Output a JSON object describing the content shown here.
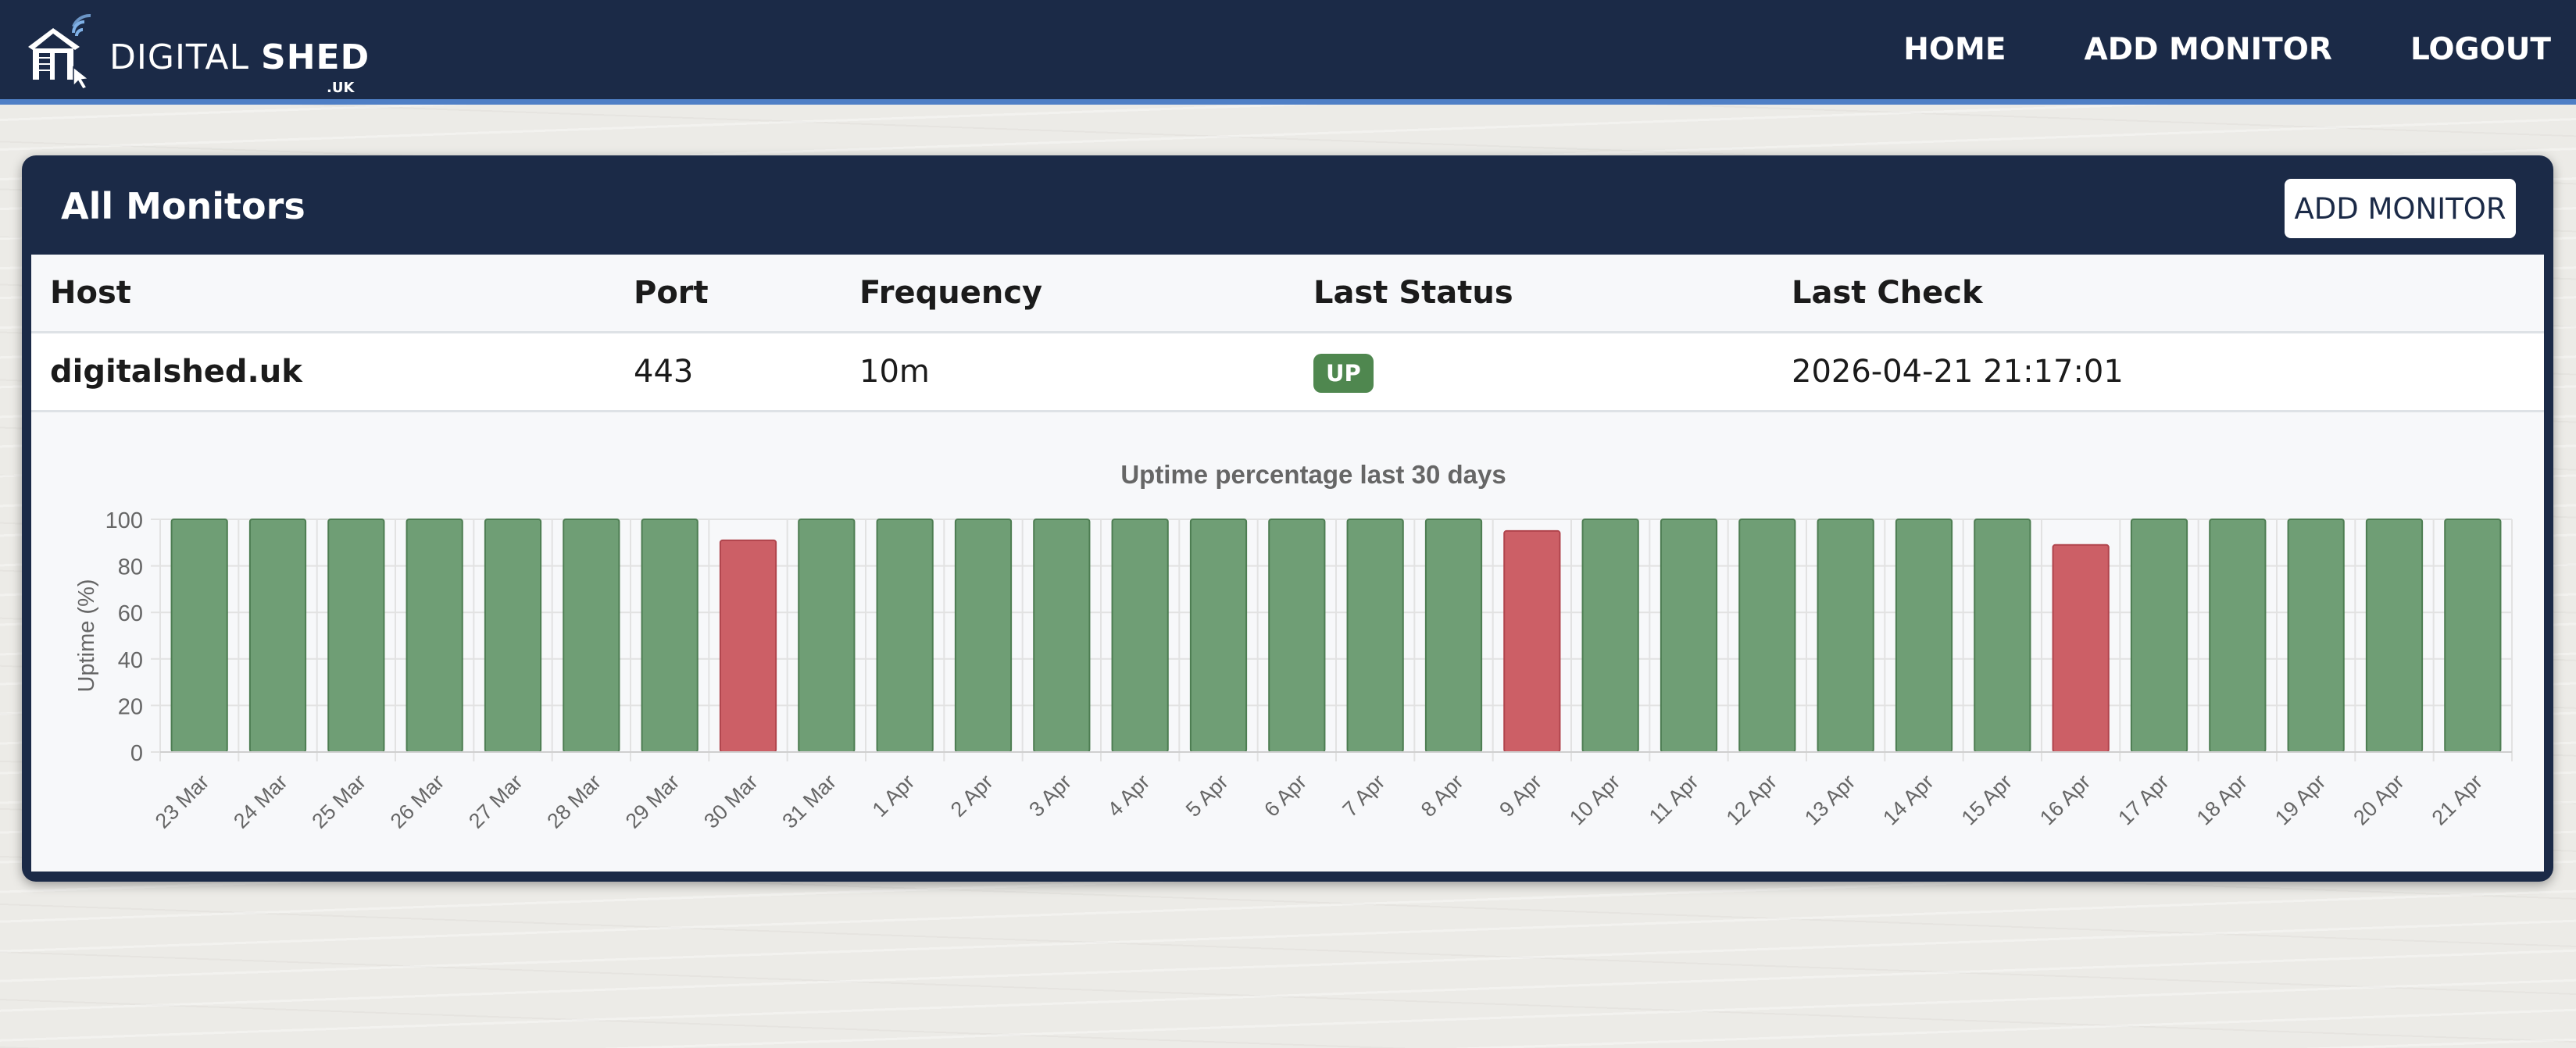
{
  "brand": {
    "name_light": "DIGITAL",
    "name_bold": "SHED",
    "suffix": ".UK"
  },
  "nav": {
    "home": "HOME",
    "add_monitor": "ADD MONITOR",
    "logout": "LOGOUT"
  },
  "card": {
    "title": "All Monitors",
    "add_button": "ADD MONITOR"
  },
  "table": {
    "headers": [
      "Host",
      "Port",
      "Frequency",
      "Last Status",
      "Last Check"
    ],
    "rows": [
      {
        "host": "digitalshed.uk",
        "port": "443",
        "frequency": "10m",
        "status": "UP",
        "last_check": "2026-04-21 21:17:01"
      }
    ]
  },
  "colors": {
    "navy": "#1b2a47",
    "accent_blue": "#4f7fc6",
    "status_up": "#4f874f",
    "bar_green": "#6f9e75",
    "bar_red": "#cc5f66"
  },
  "chart_data": {
    "type": "bar",
    "title": "Uptime percentage last 30 days",
    "xlabel": "",
    "ylabel": "Uptime (%)",
    "ylim": [
      0,
      100
    ],
    "yticks": [
      0,
      20,
      40,
      60,
      80,
      100
    ],
    "grid": true,
    "legend": "none",
    "categories": [
      "23 Mar",
      "24 Mar",
      "25 Mar",
      "26 Mar",
      "27 Mar",
      "28 Mar",
      "29 Mar",
      "30 Mar",
      "31 Mar",
      "1 Apr",
      "2 Apr",
      "3 Apr",
      "4 Apr",
      "5 Apr",
      "6 Apr",
      "7 Apr",
      "8 Apr",
      "9 Apr",
      "10 Apr",
      "11 Apr",
      "12 Apr",
      "13 Apr",
      "14 Apr",
      "15 Apr",
      "16 Apr",
      "17 Apr",
      "18 Apr",
      "19 Apr",
      "20 Apr",
      "21 Apr"
    ],
    "values": [
      100,
      100,
      100,
      100,
      100,
      100,
      100,
      91,
      100,
      100,
      100,
      100,
      100,
      100,
      100,
      100,
      100,
      95,
      100,
      100,
      100,
      100,
      100,
      100,
      89,
      100,
      100,
      100,
      100,
      100
    ],
    "bar_colors": [
      "green",
      "green",
      "green",
      "green",
      "green",
      "green",
      "green",
      "red",
      "green",
      "green",
      "green",
      "green",
      "green",
      "green",
      "green",
      "green",
      "green",
      "red",
      "green",
      "green",
      "green",
      "green",
      "green",
      "green",
      "red",
      "green",
      "green",
      "green",
      "green",
      "green"
    ]
  }
}
